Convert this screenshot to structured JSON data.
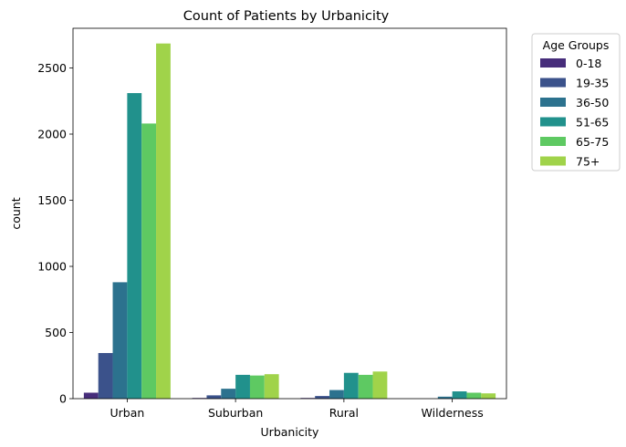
{
  "chart_data": {
    "type": "bar",
    "title": "Count of Patients by Urbanicity",
    "xlabel": "Urbanicity",
    "ylabel": "count",
    "categories": [
      "Urban",
      "Suburban",
      "Rural",
      "Wilderness"
    ],
    "ylim": [
      0,
      2800
    ],
    "yticks": [
      0,
      500,
      1000,
      1500,
      2000,
      2500
    ],
    "legend": {
      "title": "Age Groups",
      "placement": "outside-top-right"
    },
    "grid": false,
    "series": [
      {
        "name": "0-18",
        "color": "#472d7b",
        "values": [
          45,
          5,
          5,
          0
        ]
      },
      {
        "name": "19-35",
        "color": "#3b528b",
        "values": [
          345,
          25,
          20,
          0
        ]
      },
      {
        "name": "36-50",
        "color": "#2c728e",
        "values": [
          880,
          75,
          65,
          15
        ]
      },
      {
        "name": "51-65",
        "color": "#21918c",
        "values": [
          2310,
          180,
          195,
          55
        ]
      },
      {
        "name": "65-75",
        "color": "#5ec962",
        "values": [
          2080,
          175,
          180,
          45
        ]
      },
      {
        "name": "75+",
        "color": "#a0d34a",
        "values": [
          2685,
          185,
          205,
          40
        ]
      }
    ]
  }
}
